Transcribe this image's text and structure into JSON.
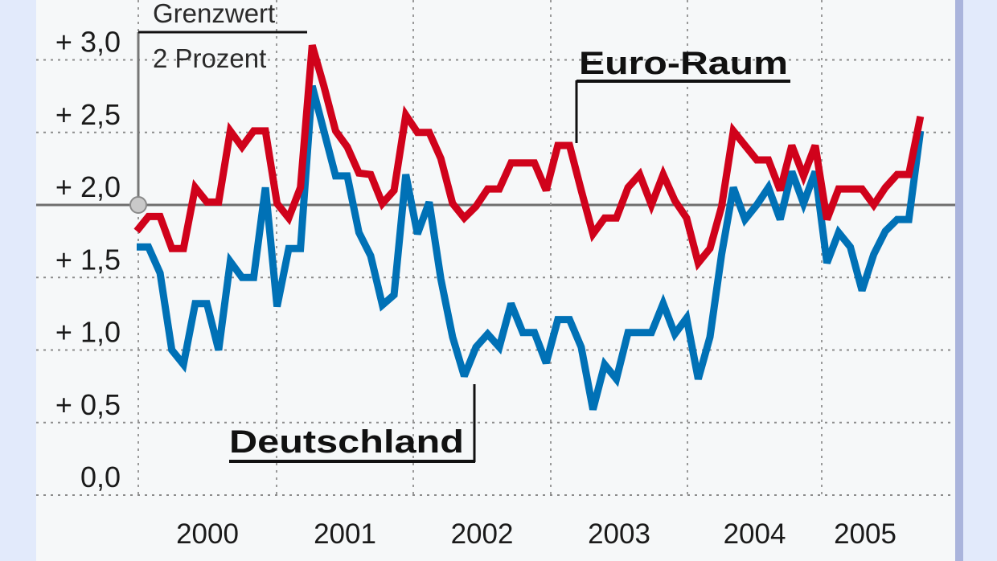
{
  "chart_data": {
    "type": "line",
    "title": "",
    "xlabel": "",
    "ylabel": "",
    "ylim": [
      0,
      3.0
    ],
    "y_ticks": [
      {
        "value": 3.0,
        "label": "+ 3,0"
      },
      {
        "value": 2.5,
        "label": "+ 2,5"
      },
      {
        "value": 2.0,
        "label": "+ 2,0"
      },
      {
        "value": 1.5,
        "label": "+ 1,5"
      },
      {
        "value": 1.0,
        "label": "+ 1,0"
      },
      {
        "value": 0.5,
        "label": "+ 0,5"
      },
      {
        "value": 0.0,
        "label": "0,0"
      }
    ],
    "x_unit": "monthly, starting January 2000",
    "x_ticks": [
      "2000",
      "2001",
      "2002",
      "2003",
      "2004",
      "2005"
    ],
    "grid": true,
    "threshold": {
      "value": 2.0,
      "label_line1": "Grenzwert",
      "label_line2": "2 Prozent"
    },
    "series": [
      {
        "name": "Euro-Raum",
        "color": "#d0021b",
        "values": [
          1.82,
          1.92,
          1.92,
          1.7,
          1.7,
          2.12,
          2.02,
          2.02,
          2.51,
          2.4,
          2.51,
          2.51,
          2.01,
          1.91,
          2.12,
          3.1,
          2.82,
          2.51,
          2.4,
          2.22,
          2.21,
          2.01,
          2.1,
          2.62,
          2.5,
          2.5,
          2.32,
          2.01,
          1.91,
          1.99,
          2.11,
          2.11,
          2.29,
          2.29,
          2.29,
          2.1,
          2.41,
          2.41,
          2.1,
          1.8,
          1.91,
          1.91,
          2.12,
          2.21,
          2.0,
          2.21,
          2.03,
          1.91,
          1.6,
          1.7,
          1.99,
          2.51,
          2.41,
          2.31,
          2.31,
          2.1,
          2.41,
          2.2,
          2.41,
          1.9,
          2.11,
          2.11,
          2.11,
          2.0,
          2.12,
          2.21,
          2.21,
          2.61
        ]
      },
      {
        "name": "Deutschland",
        "color": "#0071b6",
        "values": [
          1.71,
          1.71,
          1.53,
          1.0,
          0.9,
          1.32,
          1.32,
          1.0,
          1.61,
          1.5,
          1.5,
          2.12,
          1.3,
          1.7,
          1.7,
          2.82,
          2.51,
          2.2,
          2.2,
          1.81,
          1.65,
          1.31,
          1.38,
          2.21,
          1.8,
          2.02,
          1.49,
          1.09,
          0.82,
          1.02,
          1.11,
          1.02,
          1.32,
          1.12,
          1.12,
          0.91,
          1.21,
          1.21,
          1.02,
          0.59,
          0.9,
          0.8,
          1.12,
          1.12,
          1.12,
          1.32,
          1.11,
          1.22,
          0.8,
          1.09,
          1.66,
          2.12,
          1.9,
          2.0,
          2.12,
          1.9,
          2.23,
          2.01,
          2.23,
          1.6,
          1.81,
          1.71,
          1.41,
          1.66,
          1.82,
          1.9,
          1.9,
          2.51
        ]
      }
    ]
  }
}
